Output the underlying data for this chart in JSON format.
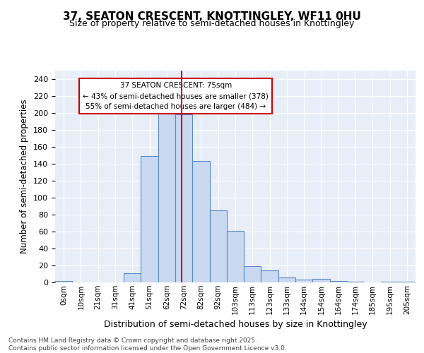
{
  "title": "37, SEATON CRESCENT, KNOTTINGLEY, WF11 0HU",
  "subtitle": "Size of property relative to semi-detached houses in Knottingley",
  "xlabel": "Distribution of semi-detached houses by size in Knottingley",
  "ylabel": "Number of semi-detached properties",
  "bar_labels": [
    "0sqm",
    "10sqm",
    "21sqm",
    "31sqm",
    "41sqm",
    "51sqm",
    "62sqm",
    "72sqm",
    "82sqm",
    "92sqm",
    "103sqm",
    "113sqm",
    "123sqm",
    "133sqm",
    "144sqm",
    "154sqm",
    "164sqm",
    "174sqm",
    "185sqm",
    "195sqm",
    "205sqm"
  ],
  "bar_values": [
    2,
    0,
    0,
    0,
    11,
    149,
    201,
    198,
    143,
    85,
    61,
    19,
    14,
    6,
    3,
    4,
    2,
    1,
    0,
    1,
    1
  ],
  "bar_color": "#c9d9f0",
  "bar_edge_color": "#5a8ac6",
  "vline_x": 6.85,
  "vline_color": "#cc0000",
  "annotation_text": "37 SEATON CRESCENT: 75sqm\n← 43% of semi-detached houses are smaller (378)\n55% of semi-detached houses are larger (484) →",
  "annotation_box_color": "#cc0000",
  "ylim": [
    0,
    250
  ],
  "yticks": [
    0,
    20,
    40,
    60,
    80,
    100,
    120,
    140,
    160,
    180,
    200,
    220,
    240
  ],
  "footer_text": "Contains HM Land Registry data © Crown copyright and database right 2025.\nContains public sector information licensed under the Open Government Licence v3.0.",
  "plot_bg_color": "#e8eef8"
}
